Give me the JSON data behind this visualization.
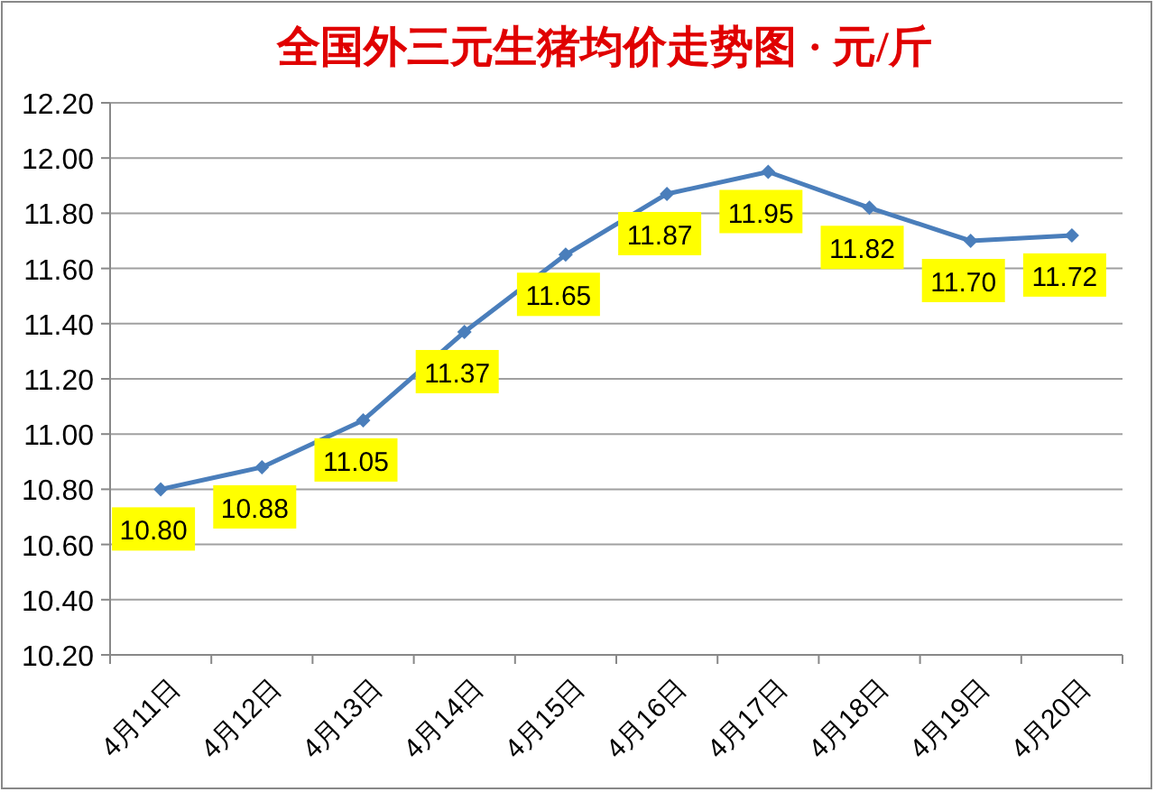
{
  "chart_data": {
    "type": "line",
    "title": "全国外三元生猪均价走势图 · 元/斤",
    "categories": [
      "4月11日",
      "4月12日",
      "4月13日",
      "4月14日",
      "4月15日",
      "4月16日",
      "4月17日",
      "4月18日",
      "4月19日",
      "4月20日"
    ],
    "series": [
      {
        "color": "#4a7ebb",
        "values": [
          10.8,
          10.88,
          11.05,
          11.37,
          11.65,
          11.87,
          11.95,
          11.82,
          11.7,
          11.72
        ],
        "value_labels": [
          "10.80",
          "10.88",
          "11.05",
          "11.37",
          "11.65",
          "11.87",
          "11.95",
          "11.82",
          "11.70",
          "11.72"
        ]
      }
    ],
    "ylim": [
      10.2,
      12.2
    ],
    "yticks": [
      {
        "value": 10.2,
        "label": "10.20"
      },
      {
        "value": 10.4,
        "label": "10.40"
      },
      {
        "value": 10.6,
        "label": "10.60"
      },
      {
        "value": 10.8,
        "label": "10.80"
      },
      {
        "value": 11.0,
        "label": "11.00"
      },
      {
        "value": 11.2,
        "label": "11.20"
      },
      {
        "value": 11.4,
        "label": "11.40"
      },
      {
        "value": 11.6,
        "label": "11.60"
      },
      {
        "value": 11.8,
        "label": "11.80"
      },
      {
        "value": 12.0,
        "label": "12.00"
      },
      {
        "value": 12.2,
        "label": "12.20"
      }
    ],
    "grid": "y",
    "marker": "diamond"
  }
}
